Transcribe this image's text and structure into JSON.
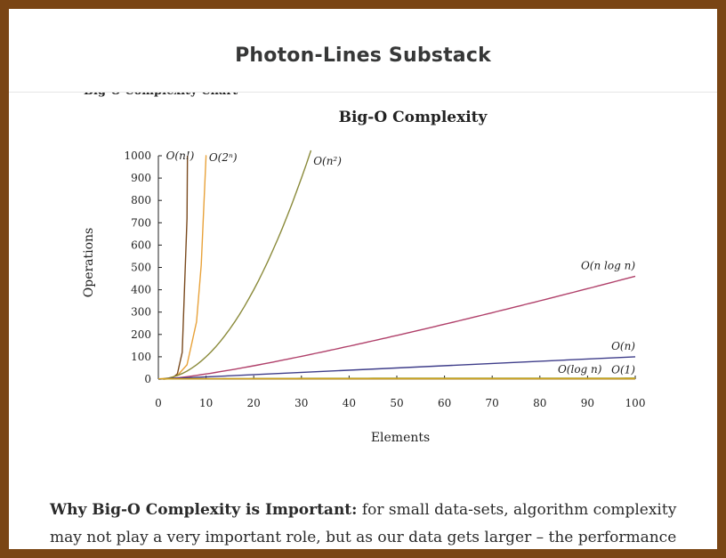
{
  "header": {
    "site_title": "Photon-Lines Substack"
  },
  "article": {
    "cropped_heading": "Big-O Complexity Chart",
    "body_bold": "Why Big-O Complexity is Important:",
    "body_text": " for small data-sets, algorithm complexity may not play a very important role, but as our data gets larger – the performance impact of"
  },
  "colors": {
    "n_fact": "#7a4a1e",
    "two_n": "#e8a23a",
    "n_sq": "#8a8a3a",
    "n_log_n": "#b0406a",
    "n": "#3e3d8a",
    "log_n": "#a8a030",
    "one": "#d0a020"
  },
  "chart_data": {
    "type": "line",
    "title": "Big-O Complexity",
    "xlabel": "Elements",
    "ylabel": "Operations",
    "xlim": [
      0,
      100
    ],
    "ylim": [
      0,
      1000
    ],
    "xticks": [
      0,
      10,
      20,
      30,
      40,
      50,
      60,
      70,
      80,
      90,
      100
    ],
    "yticks": [
      0,
      100,
      200,
      300,
      400,
      500,
      600,
      700,
      800,
      900,
      1000
    ],
    "series": [
      {
        "name": "O(n!)",
        "key": "n_fact",
        "x": [
          0,
          1,
          2,
          3,
          4,
          5,
          6,
          6.1
        ],
        "y": [
          1,
          1,
          2,
          6,
          24,
          120,
          720,
          1000
        ]
      },
      {
        "name": "O(2^n)",
        "key": "two_n",
        "x": [
          0,
          2,
          4,
          6,
          8,
          9,
          10,
          10.1
        ],
        "y": [
          1,
          4,
          16,
          64,
          256,
          512,
          1000,
          1000
        ]
      },
      {
        "name": "O(n^2)",
        "key": "n_sq",
        "x": [
          0,
          5,
          10,
          15,
          20,
          25,
          30,
          32
        ],
        "y": [
          0,
          25,
          100,
          225,
          400,
          625,
          900,
          1000
        ]
      },
      {
        "name": "O(n log n)",
        "key": "n_log_n",
        "x": [
          1,
          10,
          20,
          40,
          60,
          80,
          100
        ],
        "y": [
          0,
          23,
          60,
          148,
          246,
          351,
          461
        ]
      },
      {
        "name": "O(n)",
        "key": "n",
        "x": [
          0,
          100
        ],
        "y": [
          0,
          100
        ]
      },
      {
        "name": "O(log n)",
        "key": "log_n",
        "x": [
          1,
          10,
          50,
          100
        ],
        "y": [
          0,
          2.3,
          3.9,
          4.6
        ]
      },
      {
        "name": "O(1)",
        "key": "one",
        "x": [
          0,
          100
        ],
        "y": [
          1,
          1
        ]
      }
    ],
    "labels": {
      "n_fact": "O(n!)",
      "two_n": "O(2ⁿ)",
      "n_sq": "O(n²)",
      "n_log_n": "O(n log n)",
      "n": "O(n)",
      "log_n": "O(log n)",
      "one": "O(1)"
    }
  }
}
